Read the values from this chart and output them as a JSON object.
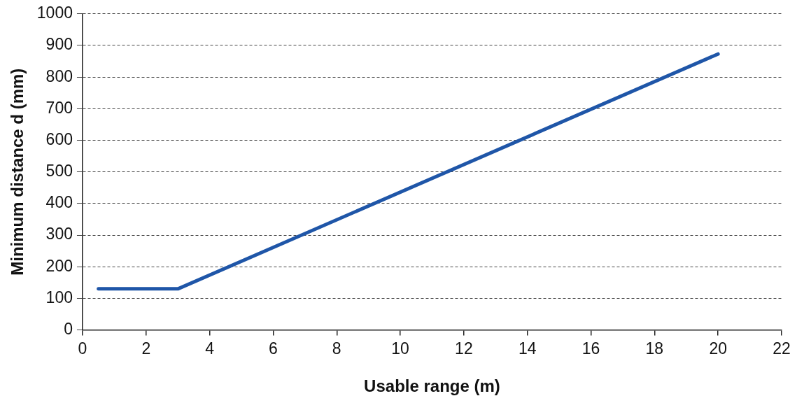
{
  "chart_data": {
    "type": "line",
    "xlabel": "Usable range (m)",
    "ylabel": "Minimum distance d (mm)",
    "x": [
      0.5,
      3,
      20
    ],
    "series": [
      {
        "color": "#1f56a8",
        "values": [
          130,
          130,
          873
        ]
      }
    ],
    "xlim": [
      0,
      22
    ],
    "xticks": [
      0,
      2,
      4,
      6,
      8,
      10,
      12,
      14,
      16,
      18,
      20,
      22
    ],
    "ylim": [
      0,
      1000
    ],
    "yticks": [
      0,
      100,
      200,
      300,
      400,
      500,
      600,
      700,
      800,
      900,
      1000
    ],
    "grid": "y",
    "legend": false,
    "marker": "none",
    "line_style": "solid"
  }
}
